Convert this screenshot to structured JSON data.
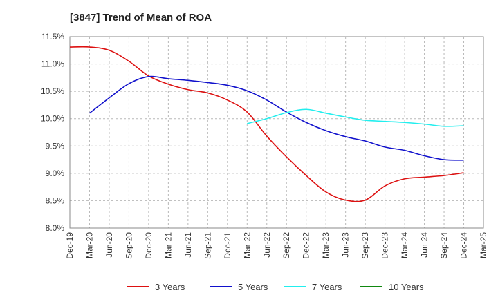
{
  "chart_data": {
    "type": "line",
    "title": "[3847]  Trend of Mean of ROA",
    "xlabel": "",
    "ylabel": "",
    "ylim": [
      8.0,
      11.5
    ],
    "y_ticks": [
      "8.0%",
      "8.5%",
      "9.0%",
      "9.5%",
      "10.0%",
      "10.5%",
      "11.0%",
      "11.5%"
    ],
    "y_tick_values": [
      8.0,
      8.5,
      9.0,
      9.5,
      10.0,
      10.5,
      11.0,
      11.5
    ],
    "categories": [
      "Dec-19",
      "Mar-20",
      "Jun-20",
      "Sep-20",
      "Dec-20",
      "Mar-21",
      "Jun-21",
      "Sep-21",
      "Dec-21",
      "Mar-22",
      "Jun-22",
      "Sep-22",
      "Dec-22",
      "Mar-23",
      "Jun-23",
      "Sep-23",
      "Dec-23",
      "Mar-24",
      "Jun-24",
      "Sep-24",
      "Dec-24",
      "Mar-25"
    ],
    "grid": true,
    "legend_position": "bottom",
    "series": [
      {
        "name": "3 Years",
        "color": "#dd1111",
        "values": [
          11.31,
          11.31,
          11.25,
          11.05,
          10.78,
          10.63,
          10.53,
          10.47,
          10.34,
          10.12,
          9.68,
          9.3,
          8.96,
          8.66,
          8.51,
          8.51,
          8.77,
          8.9,
          8.93,
          8.96,
          9.01,
          null
        ]
      },
      {
        "name": "5 Years",
        "color": "#1111cc",
        "values": [
          null,
          10.1,
          10.38,
          10.64,
          10.77,
          10.73,
          10.7,
          10.66,
          10.61,
          10.51,
          10.34,
          10.12,
          9.93,
          9.78,
          9.67,
          9.59,
          9.48,
          9.42,
          9.32,
          9.25,
          9.24,
          null
        ]
      },
      {
        "name": "7 Years",
        "color": "#22eeee",
        "values": [
          null,
          null,
          null,
          null,
          null,
          null,
          null,
          null,
          null,
          9.91,
          10.0,
          10.11,
          10.17,
          10.1,
          10.03,
          9.97,
          9.95,
          9.93,
          9.9,
          9.86,
          9.87,
          null
        ]
      },
      {
        "name": "10 Years",
        "color": "#118811",
        "values": [
          null,
          null,
          null,
          null,
          null,
          null,
          null,
          null,
          null,
          null,
          null,
          null,
          null,
          null,
          null,
          null,
          null,
          null,
          null,
          null,
          null,
          null
        ]
      }
    ]
  }
}
